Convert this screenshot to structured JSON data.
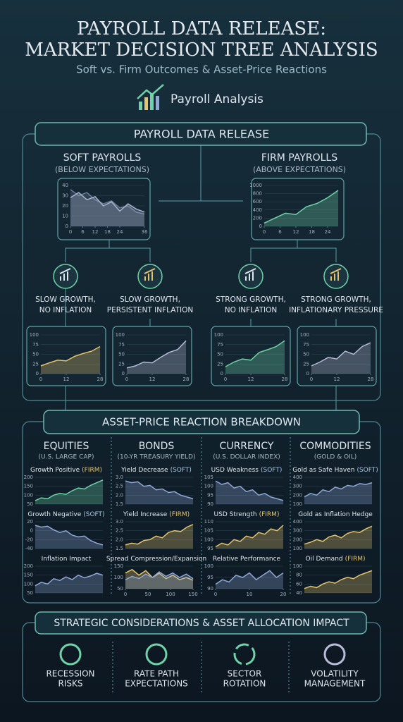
{
  "header": {
    "title_lines": [
      "PAYROLL DATA RELEASE:",
      "MARKET DECISION TREE ANALYSIS"
    ],
    "subtitle": "Soft vs. Firm Outcomes & Asset-Price Reactions",
    "badge": "Payroll Analysis"
  },
  "tree": {
    "root": "PAYROLL DATA RELEASE",
    "branches": [
      {
        "title": "SOFT PAYROLLS",
        "subtitle": "(BELOW EXPECTATIONS)",
        "chart": {
          "ylim": [
            0,
            40
          ],
          "yticks": [
            0,
            10,
            20,
            30,
            40
          ],
          "xlim": [
            0,
            36
          ],
          "xticks": [
            0,
            6,
            12,
            18,
            24,
            36
          ],
          "series": [
            {
              "color": "#6c7a99",
              "x": [
                0,
                4,
                8,
                12,
                16,
                20,
                24,
                28,
                32,
                36
              ],
              "values": [
                36,
                30,
                33,
                26,
                22,
                25,
                18,
                20,
                14,
                12
              ]
            },
            {
              "color": "#a8b4cc",
              "x": [
                0,
                4,
                8,
                12,
                16,
                20,
                24,
                28,
                32,
                36
              ],
              "values": [
                28,
                33,
                26,
                29,
                20,
                24,
                15,
                22,
                17,
                14
              ]
            }
          ]
        }
      },
      {
        "title": "FIRM PAYROLLS",
        "subtitle": "(ABOVE EXPECTATIONS)",
        "chart": {
          "ylim": [
            0,
            1000
          ],
          "yticks": [
            0,
            200,
            400,
            600,
            800,
            1000
          ],
          "xlim": [
            0,
            28
          ],
          "xticks": [
            0,
            6,
            12,
            18,
            24
          ],
          "series": [
            {
              "color": "#6fd3a8",
              "x": [
                0,
                4,
                8,
                12,
                16,
                20,
                24,
                28
              ],
              "values": [
                80,
                200,
                320,
                290,
                480,
                560,
                700,
                880
              ]
            }
          ]
        }
      }
    ],
    "scenarios": [
      {
        "lines": [
          "SLOW GROWTH,",
          "NO INFLATION"
        ],
        "chart": {
          "ylim": [
            0,
            100
          ],
          "yticks": [
            0,
            25,
            50,
            75,
            100
          ],
          "xlim": [
            0,
            28
          ],
          "xticks": [
            0,
            12,
            28
          ],
          "series": [
            {
              "color": "#e5c46c",
              "x": [
                0,
                4,
                8,
                12,
                16,
                20,
                24,
                28
              ],
              "values": [
                20,
                28,
                35,
                33,
                45,
                52,
                58,
                70
              ]
            }
          ]
        }
      },
      {
        "lines": [
          "SLOW GROWTH,",
          "PERSISTENT INFLATION"
        ],
        "chart": {
          "ylim": [
            0,
            100
          ],
          "yticks": [
            0,
            25,
            50,
            75,
            100
          ],
          "xlim": [
            0,
            28
          ],
          "xticks": [
            0,
            12,
            28
          ],
          "series": [
            {
              "color": "#b8bcd8",
              "x": [
                0,
                4,
                8,
                12,
                16,
                20,
                24,
                28
              ],
              "values": [
                15,
                20,
                30,
                28,
                42,
                55,
                62,
                85
              ]
            }
          ]
        }
      },
      {
        "lines": [
          "STRONG GROWTH,",
          "NO INFLATION"
        ],
        "chart": {
          "ylim": [
            0,
            100
          ],
          "yticks": [
            0,
            25,
            50,
            75,
            100
          ],
          "xlim": [
            0,
            28
          ],
          "xticks": [
            0,
            12,
            28
          ],
          "series": [
            {
              "color": "#6fd3a8",
              "x": [
                0,
                4,
                8,
                12,
                16,
                20,
                24,
                28
              ],
              "values": [
                18,
                30,
                38,
                35,
                55,
                62,
                70,
                85
              ]
            }
          ]
        }
      },
      {
        "lines": [
          "STRONG GROWTH,",
          "INFLATIONARY PRESSURE"
        ],
        "chart": {
          "ylim": [
            0,
            100
          ],
          "yticks": [
            0,
            25,
            50,
            75,
            100
          ],
          "xlim": [
            0,
            28
          ],
          "xticks": [
            0,
            12,
            28
          ],
          "series": [
            {
              "color": "#b8bcd8",
              "x": [
                0,
                4,
                8,
                12,
                16,
                20,
                24,
                28
              ],
              "values": [
                20,
                30,
                42,
                38,
                58,
                50,
                70,
                80
              ]
            }
          ]
        }
      }
    ]
  },
  "reactions": {
    "title": "ASSET-PRICE REACTION BREAKDOWN",
    "columns": [
      {
        "name": "EQUITIES",
        "sub": "(U.S. LARGE CAP)",
        "panels": [
          {
            "label": "Growth Positive",
            "tag": "(FIRM)",
            "chart": {
              "ylim": [
                50,
                200
              ],
              "yticks": [
                50,
                100,
                150,
                200
              ],
              "series": [
                {
                  "color": "#6fd3a8",
                  "values": [
                    70,
                    85,
                    80,
                    100,
                    110,
                    105,
                    125,
                    140,
                    135,
                    155,
                    170,
                    185
                  ]
                }
              ]
            }
          },
          {
            "label": "Growth Negative",
            "tag": "(SOFT)",
            "chart": {
              "ylim": [
                -40,
                20
              ],
              "yticks": [
                -40,
                -20,
                0,
                20
              ],
              "series": [
                {
                  "color": "#8fa8d8",
                  "values": [
                    12,
                    8,
                    10,
                    2,
                    -4,
                    0,
                    -10,
                    -14,
                    -12,
                    -22,
                    -28,
                    -32
                  ]
                }
              ]
            }
          },
          {
            "label": "Inflation Impact",
            "chart": {
              "ylim": [
                50,
                200
              ],
              "yticks": [
                50,
                100,
                150,
                200
              ],
              "series": [
                {
                  "color": "#8fa8d8",
                  "values": [
                    90,
                    110,
                    100,
                    130,
                    120,
                    140,
                    125,
                    150,
                    135,
                    145,
                    160,
                    150
                  ]
                }
              ]
            }
          }
        ]
      },
      {
        "name": "BONDS",
        "sub": "(10-YR TREASURY YIELD)",
        "panels": [
          {
            "label": "Yield Decrease",
            "tag": "(SOFT)",
            "chart": {
              "ylim": [
                1.5,
                3
              ],
              "yticks": [
                1.5,
                {
                  "value": 2,
                  "label": "2.0"
                },
                2.5,
                {
                  "value": 3,
                  "label": "3.0"
                }
              ],
              "series": [
                {
                  "color": "#8fa8d8",
                  "values": [
                    2.8,
                    2.7,
                    2.75,
                    2.5,
                    2.55,
                    2.3,
                    2.35,
                    2.15,
                    2.2,
                    2,
                    1.9,
                    1.8
                  ]
                }
              ]
            }
          },
          {
            "label": "Yield Increase",
            "tag": "(FIRM)",
            "chart": {
              "ylim": [
                1.5,
                3
              ],
              "yticks": [
                1.5,
                {
                  "value": 2,
                  "label": "2.0"
                },
                2.5,
                {
                  "value": 3,
                  "label": "3.0"
                }
              ],
              "series": [
                {
                  "color": "#e5c46c",
                  "values": [
                    1.7,
                    1.8,
                    1.75,
                    1.95,
                    2,
                    2.2,
                    2.1,
                    2.4,
                    2.5,
                    2.45,
                    2.7,
                    2.85
                  ]
                }
              ]
            }
          },
          {
            "label": "Spread Compression/Expansion",
            "chart": {
              "ylim": [
                50,
                150
              ],
              "yticks": [
                50,
                100,
                150
              ],
              "xlim": [
                0,
                150
              ],
              "xticks": [
                0,
                50,
                100,
                150
              ],
              "series": [
                {
                  "color": "#e5c46c",
                  "x": [
                    0,
                    15,
                    30,
                    45,
                    60,
                    75,
                    90,
                    105,
                    120,
                    135,
                    150
                  ],
                  "values": [
                    120,
                    135,
                    110,
                    130,
                    100,
                    118,
                    95,
                    110,
                    90,
                    100,
                    88
                  ]
                },
                {
                  "color": "#8fa8d8",
                  "x": [
                    0,
                    15,
                    30,
                    45,
                    60,
                    75,
                    90,
                    105,
                    120,
                    135,
                    150
                  ],
                  "values": [
                    90,
                    105,
                    95,
                    115,
                    100,
                    125,
                    105,
                    120,
                    100,
                    115,
                    95
                  ]
                }
              ]
            }
          }
        ]
      },
      {
        "name": "CURRENCY",
        "sub": "(U.S. DOLLAR INDEX)",
        "panels": [
          {
            "label": "USD Weakness",
            "tag": "(SOFT)",
            "chart": {
              "ylim": [
                90,
                105
              ],
              "yticks": [
                90,
                95,
                100,
                105
              ],
              "series": [
                {
                  "color": "#8fa8d8",
                  "values": [
                    103,
                    101,
                    102,
                    99,
                    100,
                    97,
                    98,
                    95,
                    96,
                    94,
                    93,
                    92
                  ]
                }
              ]
            }
          },
          {
            "label": "USD Strength",
            "tag": "(FIRM)",
            "chart": {
              "ylim": [
                95,
                110
              ],
              "yticks": [
                95,
                100,
                105,
                110
              ],
              "series": [
                {
                  "color": "#e5c46c",
                  "values": [
                    96,
                    98,
                    97,
                    100,
                    99,
                    102,
                    101,
                    104,
                    103,
                    106,
                    105,
                    108
                  ]
                }
              ]
            }
          },
          {
            "label": "Relative Performance",
            "chart": {
              "ylim": [
                90,
                100
              ],
              "yticks": [
                90,
                95,
                100
              ],
              "xlim": [
                0,
                20
              ],
              "xticks": [
                0,
                10,
                20
              ],
              "series": [
                {
                  "color": "#8fa8d8",
                  "x": [
                    0,
                    2,
                    4,
                    6,
                    8,
                    10,
                    12,
                    14,
                    16,
                    18,
                    20
                  ],
                  "values": [
                    92,
                    94,
                    93,
                    96,
                    95,
                    97,
                    94,
                    96,
                    98,
                    95,
                    97
                  ]
                }
              ]
            }
          }
        ]
      },
      {
        "name": "COMMODITIES",
        "sub": "(GOLD & OIL)",
        "panels": [
          {
            "label": "Gold as Safe Haven",
            "tag": "(SOFT)",
            "chart": {
              "ylim": [
                100,
                400
              ],
              "yticks": [
                100,
                200,
                300,
                400
              ],
              "series": [
                {
                  "color": "#8fa8d8",
                  "values": [
                    180,
                    220,
                    200,
                    260,
                    240,
                    290,
                    270,
                    310,
                    300,
                    330,
                    320,
                    340
                  ]
                }
              ]
            }
          },
          {
            "label": "Gold as Inflation Hedge",
            "chart": {
              "ylim": [
                100,
                400
              ],
              "yticks": [
                100,
                200,
                300,
                400
              ],
              "series": [
                {
                  "color": "#e5c46c",
                  "values": [
                    150,
                    170,
                    200,
                    180,
                    230,
                    250,
                    220,
                    270,
                    290,
                    280,
                    320,
                    350
                  ]
                }
              ]
            }
          },
          {
            "label": "Oil Demand",
            "tag": "(FIRM)",
            "chart": {
              "ylim": [
                40,
                100
              ],
              "yticks": [
                40,
                60,
                80,
                100
              ],
              "series": [
                {
                  "color": "#e5c46c",
                  "values": [
                    50,
                    55,
                    52,
                    60,
                    65,
                    62,
                    70,
                    75,
                    72,
                    80,
                    85,
                    90
                  ]
                }
              ]
            }
          }
        ]
      }
    ]
  },
  "strategy": {
    "title": "STRATEGIC CONSIDERATIONS & ASSET ALLOCATION IMPACT",
    "items": [
      {
        "lines": [
          "RECESSION",
          "RISKS"
        ]
      },
      {
        "lines": [
          "RATE PATH",
          "EXPECTATIONS"
        ]
      },
      {
        "lines": [
          "SECTOR",
          "ROTATION"
        ]
      },
      {
        "lines": [
          "VOLATILITY",
          "MANAGEMENT"
        ]
      }
    ]
  }
}
